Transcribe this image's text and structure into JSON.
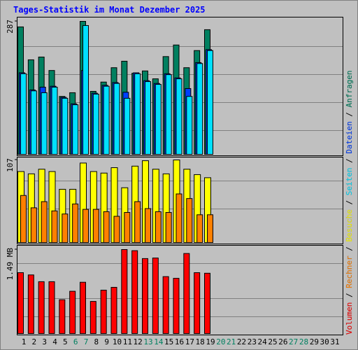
{
  "chart_data": [
    {
      "type": "bar",
      "title": "Tages-Statistik im Monat Dezember 2025",
      "ylim": [
        0,
        287
      ],
      "yticks": [
        287
      ],
      "series": [
        {
          "name": "Anfragen",
          "color": "#008060",
          "values": [
            275,
            204,
            210,
            181,
            125,
            133,
            287,
            136,
            156,
            187,
            201,
            175,
            180,
            163,
            211,
            236,
            187,
            224,
            269,
            null,
            null,
            null,
            null,
            null,
            null,
            null,
            null,
            null,
            null,
            null,
            null
          ]
        },
        {
          "name": "Dateien",
          "color": "#0040ff",
          "values": [
            176,
            139,
            145,
            147,
            123,
            109,
            181,
            132,
            149,
            155,
            134,
            176,
            159,
            153,
            174,
            165,
            142,
            198,
            226,
            null,
            null,
            null,
            null,
            null,
            null,
            null,
            null,
            null,
            null,
            null,
            null
          ]
        },
        {
          "name": "Seiten",
          "color": "#00e0ff",
          "values": [
            174,
            137,
            133,
            145,
            121,
            107,
            278,
            130,
            147,
            153,
            121,
            174,
            157,
            151,
            172,
            163,
            125,
            196,
            224,
            null,
            null,
            null,
            null,
            null,
            null,
            null,
            null,
            null,
            null,
            null,
            null
          ]
        }
      ]
    },
    {
      "type": "bar",
      "ylim": [
        0,
        107
      ],
      "yticks": [
        107
      ],
      "series": [
        {
          "name": "Besuche",
          "color": "#ffff00",
          "values": [
            92,
            89,
            95,
            92,
            69,
            69,
            103,
            92,
            90,
            97,
            71,
            99,
            106,
            95,
            89,
            107,
            95,
            88,
            84,
            null,
            null,
            null,
            null,
            null,
            null,
            null,
            null,
            null,
            null,
            null,
            null
          ]
        },
        {
          "name": "Rechner",
          "color": "#ff8000",
          "values": [
            61,
            45,
            53,
            41,
            37,
            50,
            43,
            43,
            40,
            34,
            39,
            53,
            44,
            40,
            39,
            63,
            57,
            36,
            36,
            null,
            null,
            null,
            null,
            null,
            null,
            null,
            null,
            null,
            null,
            null,
            null
          ]
        }
      ]
    },
    {
      "type": "bar",
      "ylim": [
        0,
        1.49
      ],
      "yticks": [
        {
          "value": 1.49,
          "label": "1.49 MB"
        }
      ],
      "categories": [
        "1",
        "2",
        "3",
        "4",
        "5",
        "6",
        "7",
        "8",
        "9",
        "10",
        "11",
        "12",
        "13",
        "14",
        "15",
        "16",
        "17",
        "18",
        "19",
        "20",
        "21",
        "22",
        "23",
        "24",
        "25",
        "26",
        "27",
        "28",
        "29",
        "30",
        "31"
      ],
      "category_colors": [
        "#000000",
        "#000000",
        "#000000",
        "#000000",
        "#000000",
        "#008060",
        "#008060",
        "#000000",
        "#000000",
        "#000000",
        "#000000",
        "#000000",
        "#008060",
        "#008060",
        "#000000",
        "#000000",
        "#000000",
        "#000000",
        "#000000",
        "#008060",
        "#008060",
        "#000000",
        "#000000",
        "#000000",
        "#000000",
        "#000000",
        "#008060",
        "#008060",
        "#000000",
        "#000000",
        "#000000"
      ],
      "series": [
        {
          "name": "Volumen",
          "color": "#ff0000",
          "values": [
            1.08,
            1.04,
            0.92,
            0.92,
            0.6,
            0.75,
            0.91,
            0.57,
            0.77,
            0.82,
            1.49,
            1.47,
            1.33,
            1.34,
            1.01,
            0.98,
            1.42,
            1.08,
            1.07,
            null,
            null,
            null,
            null,
            null,
            null,
            null,
            null,
            null,
            null,
            null,
            null
          ]
        }
      ]
    }
  ]
}
